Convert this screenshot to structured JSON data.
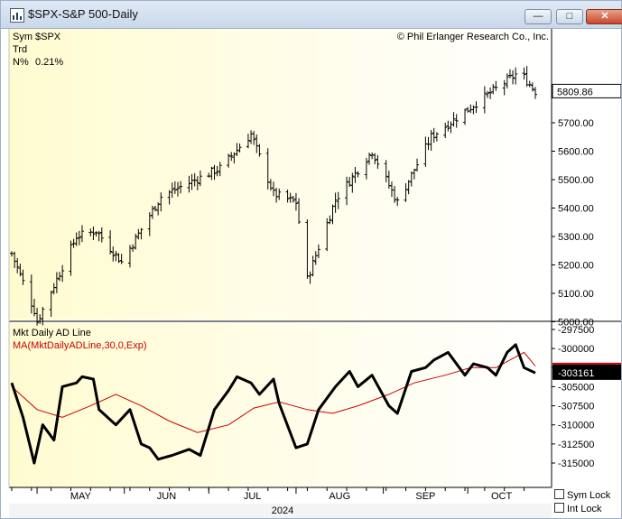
{
  "window": {
    "title": "$SPX-S&P 500-Daily",
    "minimize_glyph": "—",
    "maximize_glyph": "□",
    "close_glyph": "✕"
  },
  "info": {
    "sym_label": "Sym",
    "sym_value": "$SPX",
    "trd_label": "Trd",
    "n_label": "N%",
    "n_value": "0.21%",
    "copyright": "© Phil Erlanger Research Co., Inc."
  },
  "checkboxes": {
    "sym_lock": "Sym Lock",
    "int_lock": "Int Lock"
  },
  "colors": {
    "bg_left": "#fffbd0",
    "bg_right": "#ffffff",
    "ma": "#cc0000",
    "price": "#000000"
  },
  "chart_data": [
    {
      "type": "bar",
      "series_kind": "ohlc",
      "title": "",
      "ylim": [
        4900,
        5900
      ],
      "yticks": [
        "5700.00",
        "5600.00",
        "5500.00",
        "5400.00",
        "5300.00",
        "5200.00",
        "5100.00",
        "5000.00"
      ],
      "ytick_values": [
        5700,
        5600,
        5500,
        5400,
        5300,
        5200,
        5100,
        5000
      ],
      "last_value": "5809.86",
      "last_value_num": 5809.86,
      "anchors_x": [
        "Apr 22",
        "Apr 30",
        "May 1",
        "May 15",
        "May 22",
        "May 31",
        "Jun 14",
        "Jun 20",
        "Jul 5",
        "Jul 16",
        "Jul 24",
        "Aug 1",
        "Aug 5",
        "Aug 15",
        "Aug 28",
        "Sep 6",
        "Sep 18",
        "Sep 30",
        "Oct 18",
        "Oct 21",
        "Oct 25"
      ],
      "anchors_y": [
        5240,
        5040,
        5000,
        5300,
        5320,
        5210,
        5440,
        5470,
        5540,
        5660,
        5450,
        5420,
        5150,
        5430,
        5600,
        5420,
        5650,
        5740,
        5870,
        5860,
        5810
      ]
    },
    {
      "type": "line",
      "title": "",
      "series": [
        {
          "name": "Mkt Daily AD Line",
          "x": [
            "Apr 22",
            "Apr 26",
            "Apr 30",
            "May 3",
            "May 7",
            "May 10",
            "May 15",
            "May 17",
            "May 21",
            "May 23",
            "May 29",
            "Jun 3",
            "Jun 7",
            "Jun 10",
            "Jun 13",
            "Jun 18",
            "Jun 24",
            "Jun 28",
            "Jul 3",
            "Jul 8",
            "Jul 11",
            "Jul 16",
            "Jul 19",
            "Jul 24",
            "Jul 26",
            "Aug 1",
            "Aug 5",
            "Aug 9",
            "Aug 15",
            "Aug 20",
            "Aug 23",
            "Aug 28",
            "Sep 3",
            "Sep 6",
            "Sep 11",
            "Sep 16",
            "Sep 19",
            "Sep 24",
            "Sep 30",
            "Oct 3",
            "Oct 8",
            "Oct 11",
            "Oct 15",
            "Oct 18",
            "Oct 21",
            "Oct 25"
          ],
          "y": [
            -304500,
            -309000,
            -315000,
            -310000,
            -312000,
            -305000,
            -304500,
            -303700,
            -304000,
            -308000,
            -310000,
            -308000,
            -312500,
            -313000,
            -314500,
            -314000,
            -313200,
            -314000,
            -308000,
            -305500,
            -303700,
            -304500,
            -306000,
            -304000,
            -307200,
            -313000,
            -312500,
            -308000,
            -305000,
            -303000,
            -305000,
            -303500,
            -307500,
            -308500,
            -303000,
            -302500,
            -301500,
            -300500,
            -303500,
            -302000,
            -302500,
            -303500,
            -300500,
            -299500,
            -302500,
            -303200
          ]
        },
        {
          "name": "MA(MktDailyADLine,30,0,Exp)",
          "x": [
            "Apr 22",
            "May 1",
            "May 10",
            "May 20",
            "May 29",
            "Jun 7",
            "Jun 17",
            "Jun 27",
            "Jul 8",
            "Jul 17",
            "Jul 26",
            "Aug 5",
            "Aug 14",
            "Aug 23",
            "Sep 3",
            "Sep 12",
            "Sep 23",
            "Oct 2",
            "Oct 11",
            "Oct 21",
            "Oct 25"
          ],
          "y": [
            -305000,
            -308000,
            -309000,
            -307500,
            -306000,
            -307500,
            -309500,
            -311000,
            -310000,
            -307800,
            -307000,
            -308000,
            -308500,
            -307500,
            -306000,
            -304500,
            -303500,
            -302500,
            -302500,
            -300500,
            -302300
          ]
        }
      ],
      "ylim": [
        -317500,
        -297000
      ],
      "yticks": [
        "-297500",
        "-300000",
        "-302500",
        "-305000",
        "-307500",
        "-310000",
        "-312500",
        "-315000"
      ],
      "ytick_values": [
        -297500,
        -300000,
        -302500,
        -305000,
        -307500,
        -310000,
        -312500,
        -315000
      ],
      "last_value": "-303161",
      "last_value_num": -303161,
      "x_months": [
        "MAY",
        "JUN",
        "JUL",
        "AUG",
        "SEP",
        "OCT"
      ],
      "x_year": "2024",
      "month_dates": [
        "May 1",
        "Jun 1",
        "Jul 1",
        "Aug 1",
        "Sep 1",
        "Oct 1"
      ]
    }
  ]
}
